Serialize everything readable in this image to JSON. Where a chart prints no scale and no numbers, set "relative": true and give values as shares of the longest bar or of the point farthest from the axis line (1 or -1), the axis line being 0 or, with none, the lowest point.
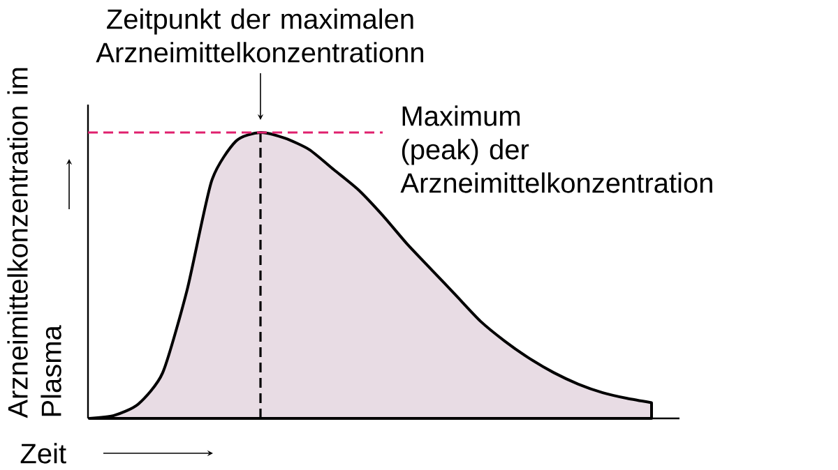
{
  "chart_data": {
    "type": "area",
    "relative": true,
    "xlabel": "Zeit",
    "ylabel": "Arzneimittelkonzentration im Plasma",
    "categories": [
      null,
      null,
      null,
      null,
      null,
      null,
      null,
      null,
      null,
      null,
      null,
      null,
      null,
      null,
      null,
      null,
      null,
      null,
      null,
      null,
      null,
      null,
      null,
      null
    ],
    "series": [
      {
        "color": "#e8dce4",
        "values": [
          0,
          0.01,
          0.05,
          0.16,
          0.45,
          0.83,
          0.97,
          1,
          0.98,
          0.94,
          0.87,
          0.8,
          0.71,
          0.61,
          0.52,
          0.43,
          0.34,
          0.27,
          0.21,
          0.16,
          0.12,
          0.09,
          0.07,
          0.055
        ]
      }
    ],
    "annotations": [
      "Zeitpunkt der maximalen Arzneimittelkonzentrationn"
    ],
    "ref_lines": [
      {
        "axis": "y",
        "value": 1,
        "label": "Maximum (peak) der Arzneimittelkonzentration",
        "color": "#e0206e",
        "line_style": "dashed"
      }
    ]
  }
}
